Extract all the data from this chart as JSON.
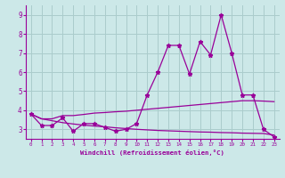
{
  "xlabel": "Windchill (Refroidissement éolien,°C)",
  "x": [
    0,
    1,
    2,
    3,
    4,
    5,
    6,
    7,
    8,
    9,
    10,
    11,
    12,
    13,
    14,
    15,
    16,
    17,
    18,
    19,
    20,
    21,
    22,
    23
  ],
  "line1": [
    3.8,
    3.2,
    3.2,
    3.6,
    2.9,
    3.3,
    3.3,
    3.1,
    2.9,
    3.0,
    3.3,
    4.8,
    6.0,
    7.4,
    7.4,
    5.9,
    7.6,
    6.9,
    9.0,
    7.0,
    4.8,
    4.8,
    3.0,
    2.6
  ],
  "line2": [
    3.8,
    3.55,
    3.55,
    3.72,
    3.72,
    3.78,
    3.85,
    3.88,
    3.92,
    3.95,
    4.0,
    4.05,
    4.1,
    4.15,
    4.2,
    4.25,
    4.3,
    4.35,
    4.4,
    4.45,
    4.5,
    4.5,
    4.48,
    4.45
  ],
  "line3": [
    3.8,
    3.55,
    3.45,
    3.35,
    3.28,
    3.22,
    3.17,
    3.13,
    3.08,
    3.04,
    3.0,
    2.97,
    2.94,
    2.92,
    2.9,
    2.88,
    2.86,
    2.85,
    2.83,
    2.82,
    2.8,
    2.79,
    2.78,
    2.7
  ],
  "line_color": "#990099",
  "bg_color": "#cce8e8",
  "grid_color": "#aacccc",
  "ylim": [
    2.5,
    9.5
  ],
  "xlim": [
    -0.5,
    23.5
  ],
  "yticks": [
    3,
    4,
    5,
    6,
    7,
    8,
    9
  ],
  "xticks": [
    0,
    1,
    2,
    3,
    4,
    5,
    6,
    7,
    8,
    9,
    10,
    11,
    12,
    13,
    14,
    15,
    16,
    17,
    18,
    19,
    20,
    21,
    22,
    23
  ]
}
